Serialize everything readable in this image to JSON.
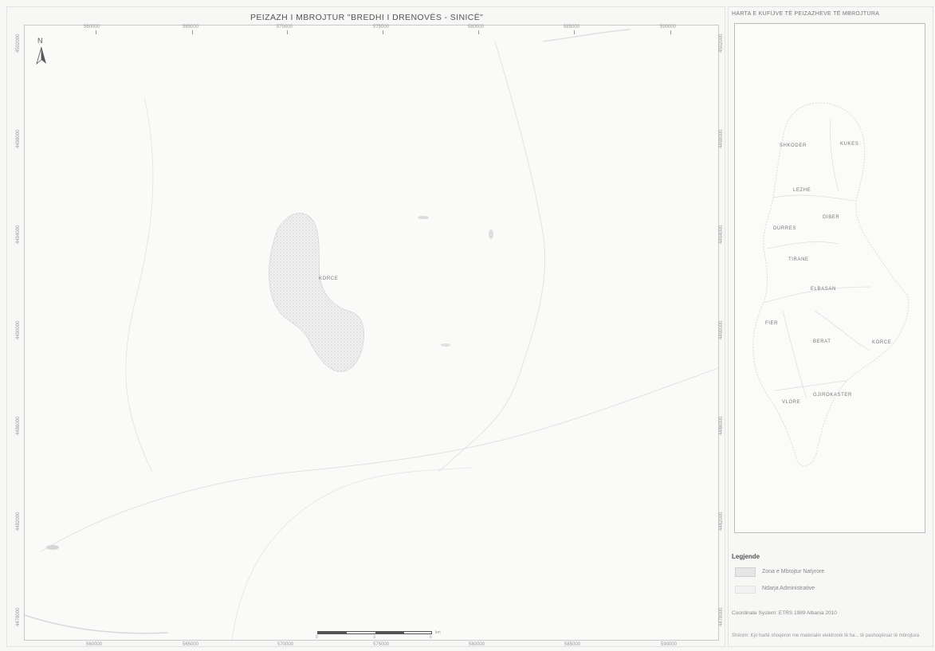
{
  "map": {
    "title": "PEIZAZH I MBROJTUR \"BREDHI I DRENOVËS - SINICË\"",
    "top_ticks": [
      "560000",
      "565000",
      "570000",
      "575000",
      "580000",
      "585000",
      "590000"
    ],
    "bottom_ticks": [
      "560000",
      "565000",
      "570000",
      "575000",
      "580000",
      "585000",
      "590000"
    ],
    "left_ticks": [
      "4502000",
      "4498000",
      "4494000",
      "4490000",
      "4486000",
      "4482000",
      "4478000"
    ],
    "right_ticks": [
      "4502000",
      "4498000",
      "4494000",
      "4490000",
      "4486000",
      "4482000",
      "4478000"
    ],
    "north_label": "N",
    "area_label": "KORCE",
    "scale_ticks": [
      "0",
      "3",
      "6",
      "km"
    ]
  },
  "inset": {
    "title": "HARTA E KUFIJVE TË PEIZAZHEVE TË MBROJTURA",
    "labels": [
      "SHKODER",
      "KUKES",
      "LEZHE",
      "DIBER",
      "DURRES",
      "TIRANE",
      "ELBASAN",
      "FIER",
      "BERAT",
      "KORCE",
      "GJIROKASTER",
      "VLORE"
    ]
  },
  "legend": {
    "heading": "Legjende",
    "items": [
      {
        "label": "Zona e Mbrojtur Natyrore",
        "color": "#d8d8d8"
      },
      {
        "label": "Ndarja Administrative",
        "color": "#ececec"
      }
    ],
    "coordinate_system": "Coordinate System: ETRS 1989 Albania 2010",
    "note": "Shënim: Kjo hartë shoqëron me materialin elektronik të ha... të pashoqëruar të mbrojtura"
  }
}
